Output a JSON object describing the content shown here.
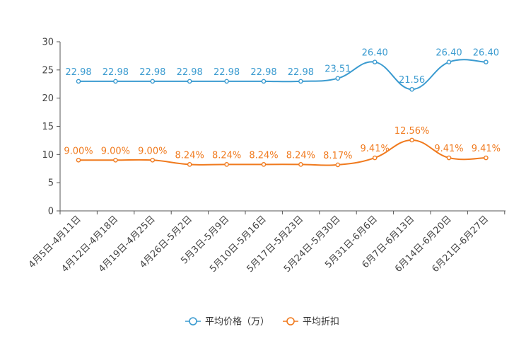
{
  "chart_data": {
    "type": "line",
    "title": "",
    "xlabel": "",
    "ylabel": "",
    "ylim": [
      0,
      30
    ],
    "yticks": [
      0,
      5,
      10,
      15,
      20,
      25,
      30
    ],
    "grid": false,
    "legend_position": "bottom",
    "categories": [
      "4月5日-4月11日",
      "4月12日-4月18日",
      "4月19日-4月25日",
      "4月26日-5月2日",
      "5月3日-5月9日",
      "5月10日-5月16日",
      "5月17日-5月23日",
      "5月24日-5月30日",
      "5月31日-6月6日",
      "6月7日-6月13日",
      "6月14日-6月20日",
      "6月21日-6月27日"
    ],
    "series": [
      {
        "name": "平均价格（万）",
        "color": "#3b9bd0",
        "values": [
          22.98,
          22.98,
          22.98,
          22.98,
          22.98,
          22.98,
          22.98,
          23.51,
          26.4,
          21.56,
          26.4,
          26.4
        ],
        "labels": [
          "22.98",
          "22.98",
          "22.98",
          "22.98",
          "22.98",
          "22.98",
          "22.98",
          "23.51",
          "26.40",
          "21.56",
          "26.40",
          "26.40"
        ]
      },
      {
        "name": "平均折扣",
        "color": "#f07a1e",
        "values": [
          9.0,
          9.0,
          9.0,
          8.24,
          8.24,
          8.24,
          8.24,
          8.17,
          9.41,
          12.56,
          9.41,
          9.41
        ],
        "labels": [
          "9.00%",
          "9.00%",
          "9.00%",
          "8.24%",
          "8.24%",
          "8.24%",
          "8.24%",
          "8.17%",
          "9.41%",
          "12.56%",
          "9.41%",
          "9.41%"
        ]
      }
    ]
  }
}
